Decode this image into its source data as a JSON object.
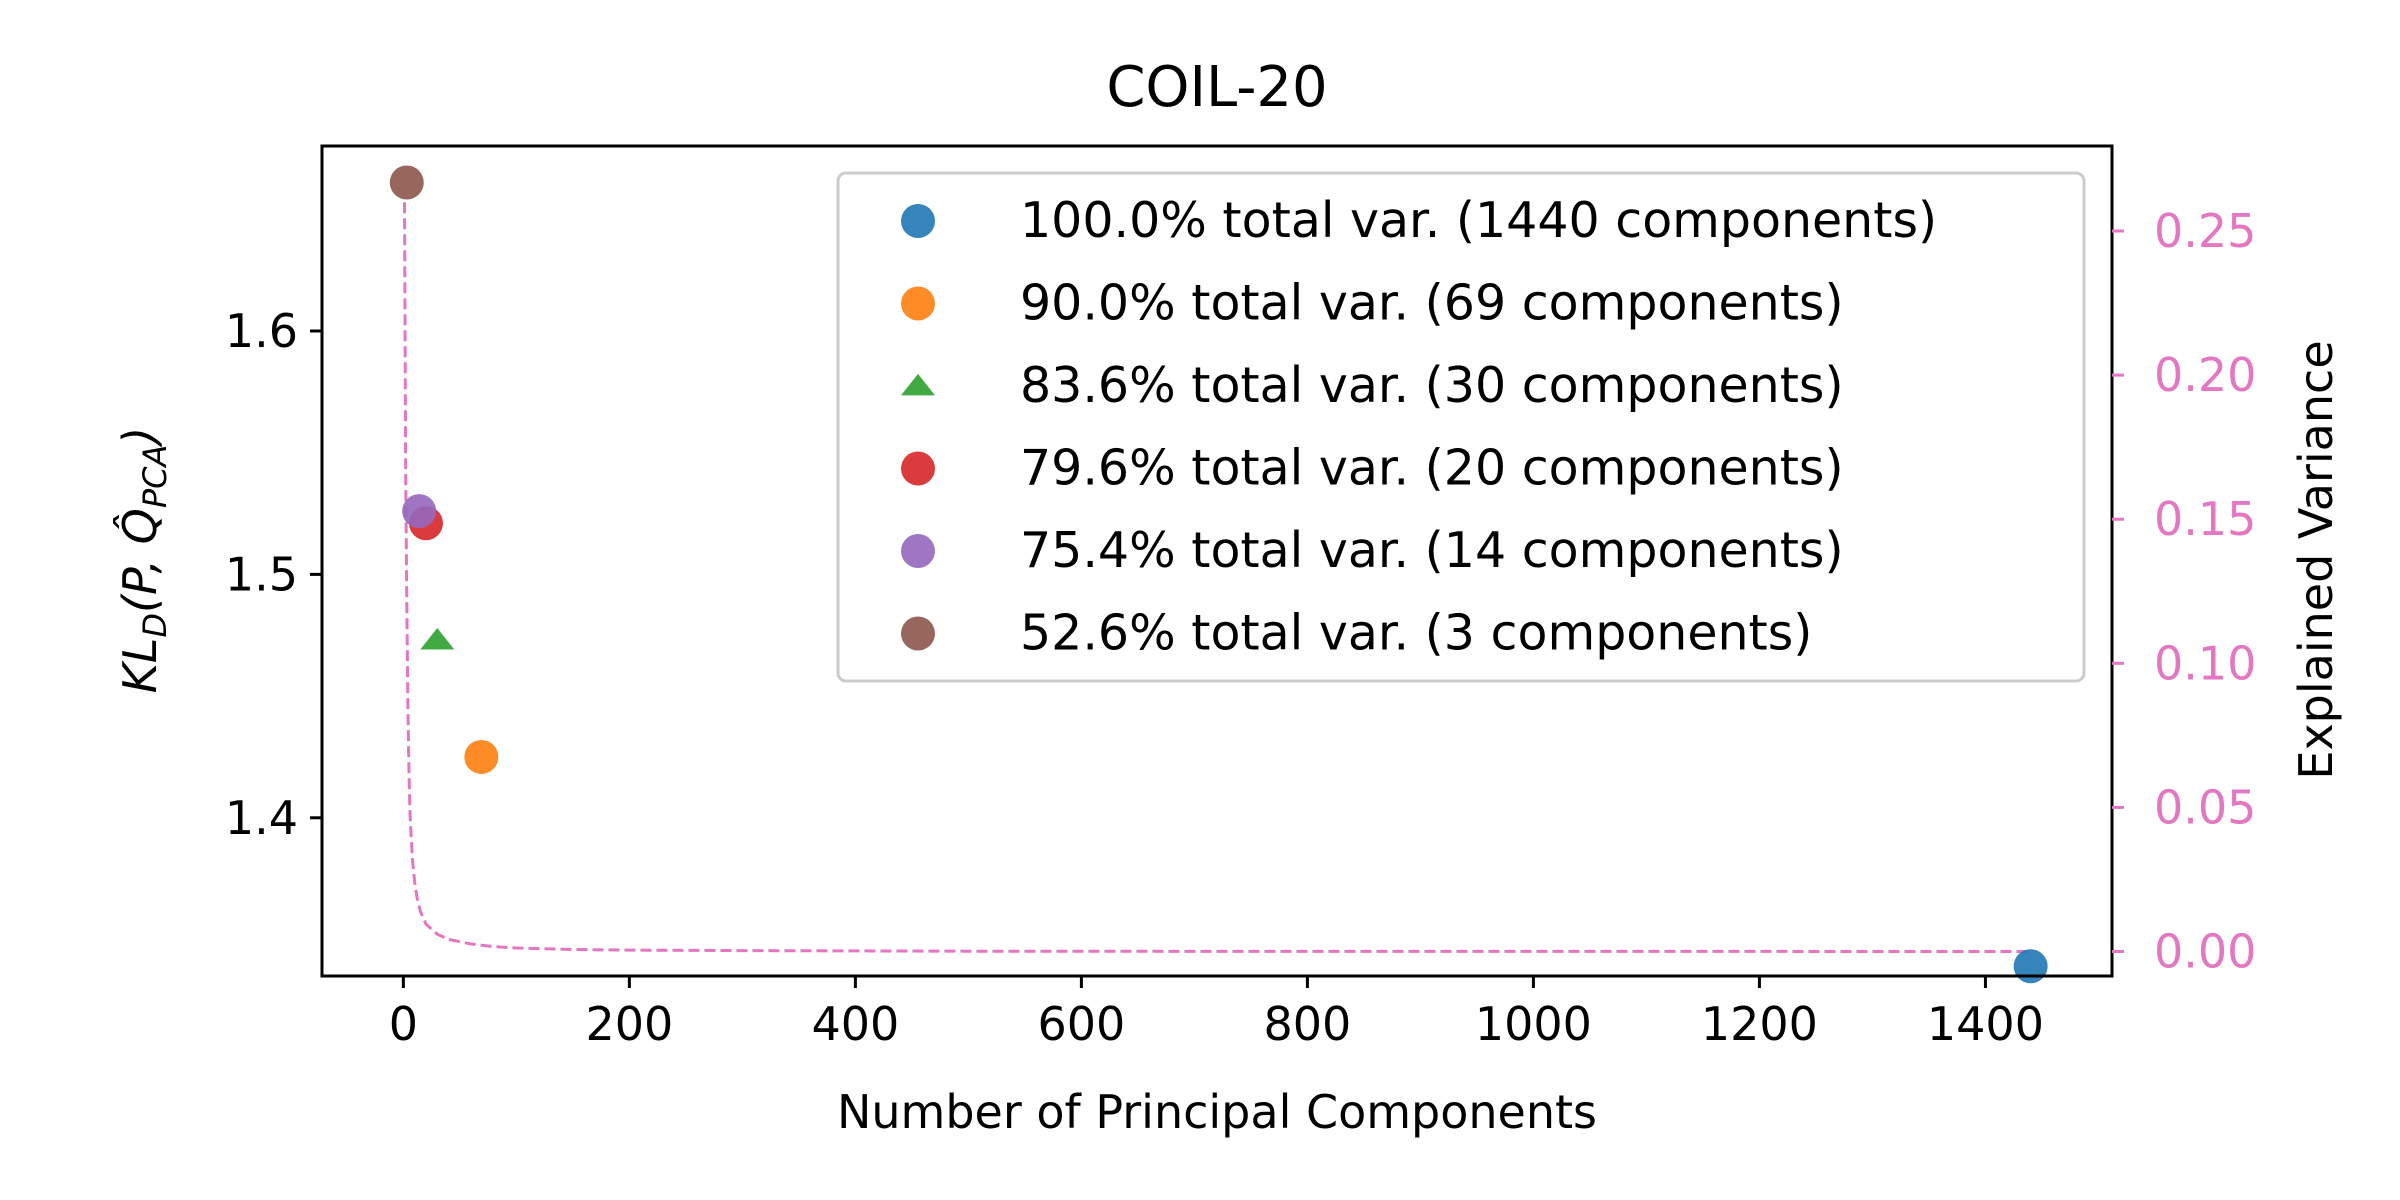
{
  "chart_data": {
    "type": "scatter",
    "title": "COIL-20",
    "xlabel": "Number of Principal Components",
    "ylabel": {
      "base": "KL",
      "base_sub": "D",
      "args_before": "(P, ",
      "q": "Q̂",
      "q_sub": "PCA",
      "args_after": ")"
    },
    "ylabel_right": "Explained Variance",
    "xlim": [
      -72,
      1512
    ],
    "ylim": [
      1.335,
      1.676
    ],
    "ylim_right": [
      -0.0085,
      0.2795
    ],
    "x_ticks": [
      0,
      200,
      400,
      600,
      800,
      1000,
      1200,
      1400
    ],
    "y_ticks": [
      1.4,
      1.5,
      1.6
    ],
    "y_ticks_right": [
      0.0,
      0.05,
      0.1,
      0.15,
      0.2,
      0.25
    ],
    "right_axis_color": "#e377c2",
    "legend_position": "upper right",
    "grid": false,
    "series": [
      {
        "name": "100.0% total var. (1440 components)",
        "x": 1440,
        "y": 1.339,
        "color": "#1f77b4",
        "marker": "circle"
      },
      {
        "name": "90.0% total var. (69 components)",
        "x": 69,
        "y": 1.425,
        "color": "#ff7f0e",
        "marker": "circle"
      },
      {
        "name": "83.6% total var. (30 components)",
        "x": 30,
        "y": 1.473,
        "color": "#2ca02c",
        "marker": "triangle"
      },
      {
        "name": "79.6% total var. (20 components)",
        "x": 20,
        "y": 1.521,
        "color": "#d62728",
        "marker": "circle"
      },
      {
        "name": "75.4% total var. (14 components)",
        "x": 14,
        "y": 1.526,
        "color": "#9467bd",
        "marker": "circle"
      },
      {
        "name": "52.6% total var. (3 components)",
        "x": 3,
        "y": 1.661,
        "color": "#8c564b",
        "marker": "circle"
      }
    ],
    "explained_variance_curve": {
      "style": "dashed",
      "color": "#e377c2",
      "x": [
        1,
        2,
        3,
        4,
        5,
        6,
        8,
        10,
        12,
        15,
        20,
        30,
        40,
        60,
        80,
        100,
        150,
        200,
        300,
        500,
        800,
        1100,
        1440
      ],
      "y": [
        0.26,
        0.17,
        0.12,
        0.085,
        0.062,
        0.047,
        0.032,
        0.024,
        0.019,
        0.014,
        0.0095,
        0.006,
        0.0042,
        0.0026,
        0.0017,
        0.0012,
        0.0007,
        0.0005,
        0.0003,
        0.0001,
        5e-05,
        2e-05,
        1e-05
      ]
    }
  }
}
